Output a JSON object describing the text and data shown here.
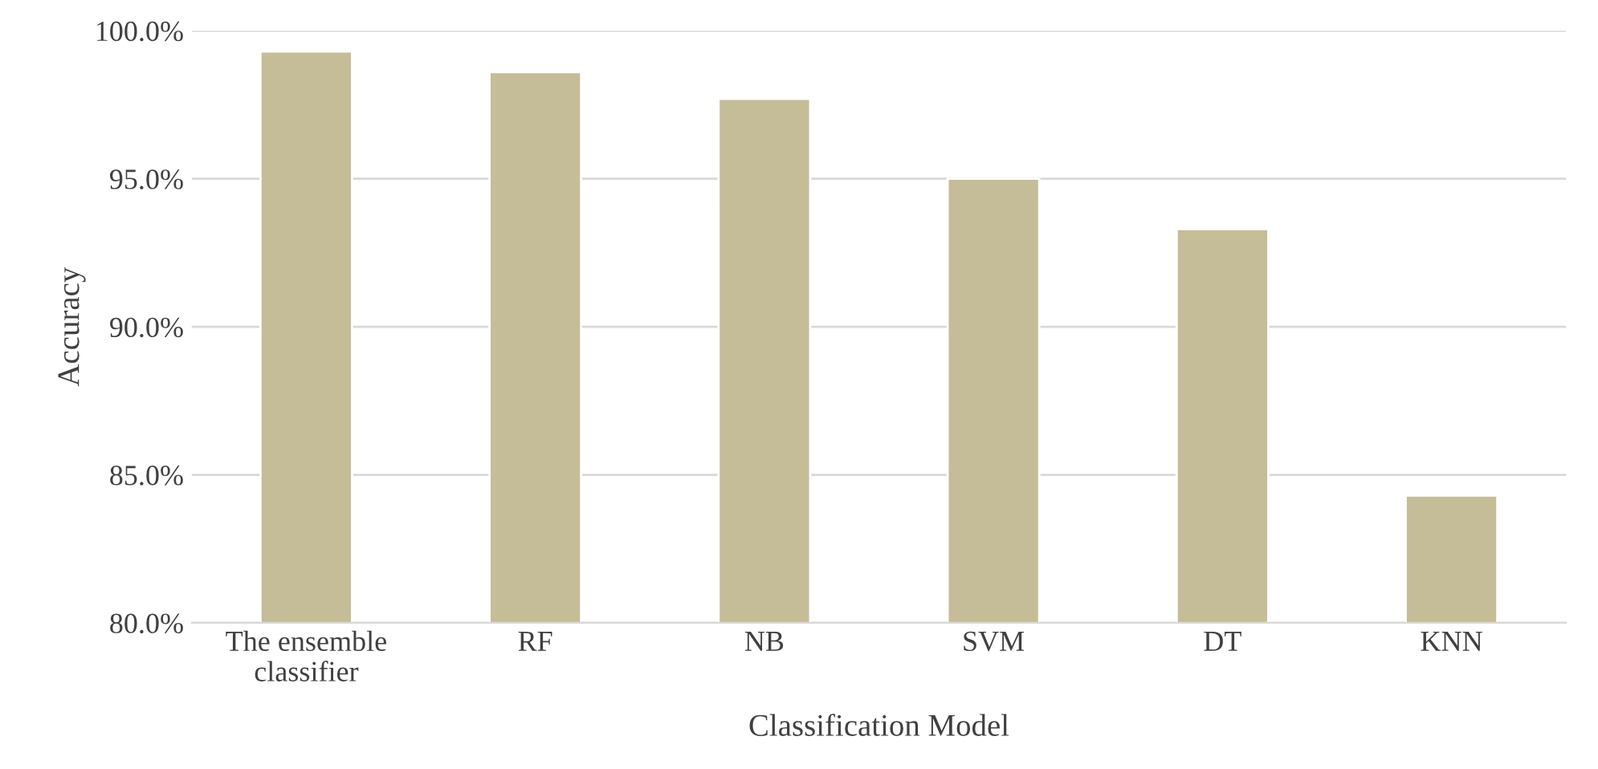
{
  "chart_data": {
    "type": "bar",
    "xlabel": "Classification Model",
    "ylabel": "Accuracy",
    "categories": [
      "The ensemble\nclassifier",
      "RF",
      "NB",
      "SVM",
      "DT",
      "KNN"
    ],
    "values": [
      99.3,
      98.6,
      97.7,
      95.0,
      93.3,
      84.3
    ],
    "color": "#c5bd98",
    "ylim": [
      80,
      100
    ],
    "yticks": [
      {
        "value": 80,
        "label": "80.0%"
      },
      {
        "value": 85,
        "label": "85.0%"
      },
      {
        "value": 90,
        "label": "90.0%"
      },
      {
        "value": 95,
        "label": "95.0%"
      },
      {
        "value": 100,
        "label": "100.0%"
      }
    ],
    "grid": "y",
    "legend": false
  }
}
